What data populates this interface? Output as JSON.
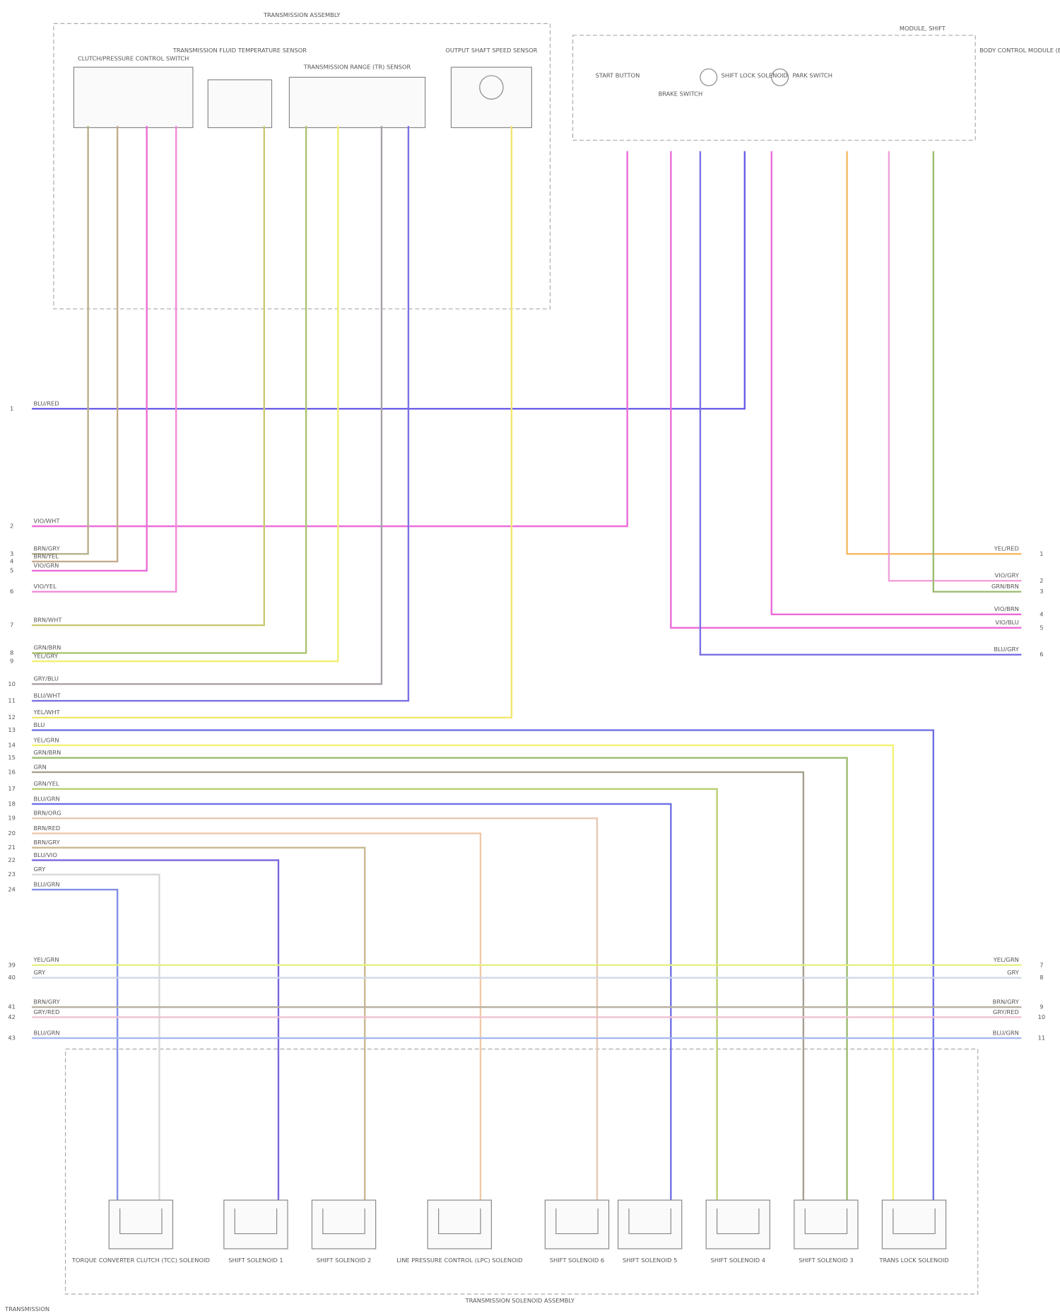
{
  "left_assembly": {
    "title": "TRANSMISSION ASSEMBLY",
    "components": [
      "CLUTCH/PRESSURE CONTROL SWITCH",
      "TRANSMISSION FLUID TEMPERATURE SENSOR",
      "TRANSMISSION RANGE (TR) SENSOR",
      "OUTPUT SHAFT SPEED SENSOR"
    ]
  },
  "right_assembly": {
    "title": "MODULE, SHIFT",
    "components": [
      "START BUTTON",
      "BRAKE SWITCH",
      "SHIFT LOCK SOLENOID",
      "PARK SWITCH"
    ],
    "side_label": "BODY CONTROL MODULE (BCM)"
  },
  "bottom_assembly": {
    "title": "TRANSMISSION SOLENOID ASSEMBLY",
    "solenoids": [
      "TORQUE CONVERTER CLUTCH (TCC) SOLENOID",
      "SHIFT SOLENOID 1",
      "SHIFT SOLENOID 2",
      "LINE PRESSURE CONTROL (LPC) SOLENOID",
      "SHIFT SOLENOID 6",
      "SHIFT SOLENOID 5",
      "SHIFT SOLENOID 4",
      "SHIFT SOLENOID 3",
      "TRANS LOCK SOLENOID"
    ]
  },
  "left_wires": [
    {
      "pin": "1",
      "label": "BLU/RED",
      "color": "#6a5ce6"
    },
    {
      "pin": "2",
      "label": "VIO/WHT",
      "color": "#ec6ad8"
    },
    {
      "pin": "3",
      "label": "BRN/GRY",
      "color": "#b7b08a"
    },
    {
      "pin": "4",
      "label": "BRN/YEL",
      "color": "#c5a98a"
    },
    {
      "pin": "5",
      "label": "VIO/GRN",
      "color": "#ec6ad8"
    },
    {
      "pin": "6",
      "label": "VIO/YEL",
      "color": "#f08ad8"
    },
    {
      "pin": "7",
      "label": "BRN/WHT",
      "color": "#c8c870"
    },
    {
      "pin": "8",
      "label": "GRN/BRN",
      "color": "#a9c470"
    },
    {
      "pin": "9",
      "label": "YEL/GRY",
      "color": "#f2ef70"
    },
    {
      "pin": "10",
      "label": "GRY/BLU",
      "color": "#a8a0a8"
    },
    {
      "pin": "11",
      "label": "BLU/WHT",
      "color": "#7a70e6"
    },
    {
      "pin": "12",
      "label": "YEL/WHT",
      "color": "#f2e670"
    },
    {
      "pin": "13",
      "label": "BLU",
      "color": "#7070e6"
    },
    {
      "pin": "14",
      "label": "YEL/GRN",
      "color": "#f2f270"
    },
    {
      "pin": "15",
      "label": "GRN/BRN",
      "color": "#9cbc70"
    },
    {
      "pin": "16",
      "label": "GRN",
      "color": "#a5a090"
    },
    {
      "pin": "17",
      "label": "GRN/YEL",
      "color": "#b8d070"
    },
    {
      "pin": "18",
      "label": "BLU/GRN",
      "color": "#6f6fe6"
    },
    {
      "pin": "19",
      "label": "BRN/ORG",
      "color": "#e8c8b0"
    },
    {
      "pin": "20",
      "label": "BRN/RED",
      "color": "#f0c8a8"
    },
    {
      "pin": "21",
      "label": "BRN/GRY",
      "color": "#c8b890"
    },
    {
      "pin": "22",
      "label": "BLU/VIO",
      "color": "#7a66e0"
    },
    {
      "pin": "23",
      "label": "GRY",
      "color": "#d8d8d8"
    },
    {
      "pin": "24",
      "label": "BLU/GRN",
      "color": "#8090e6"
    }
  ],
  "right_wires": [
    {
      "pin": "1",
      "label": "YEL/RED",
      "color": "#f4b860"
    },
    {
      "pin": "2",
      "label": "VIO/GRY",
      "color": "#f0a0d8"
    },
    {
      "pin": "3",
      "label": "GRN/BRN",
      "color": "#9cbc70"
    },
    {
      "pin": "4",
      "label": "VIO/BRN",
      "color": "#ec6ad8"
    },
    {
      "pin": "5",
      "label": "VIO/BLU",
      "color": "#ec6ad8"
    },
    {
      "pin": "6",
      "label": "BLU/GRY",
      "color": "#7a70e6"
    }
  ],
  "through_wires": [
    {
      "pin_left": "39",
      "pin_right": "7",
      "label": "YEL/GRN",
      "color": "#e6f080"
    },
    {
      "pin_left": "40",
      "pin_right": "8",
      "label": "GRY",
      "color": "#d0d8e8"
    },
    {
      "pin_left": "41",
      "pin_right": "9",
      "label": "BRN/GRY",
      "color": "#b8b0a0"
    },
    {
      "pin_left": "42",
      "pin_right": "10",
      "label": "GRY/RED",
      "color": "#f0c0d0"
    },
    {
      "pin_left": "43",
      "pin_right": "11",
      "label": "BLU/GRN",
      "color": "#a8b8f0"
    }
  ],
  "footer": "TRANSMISSION"
}
